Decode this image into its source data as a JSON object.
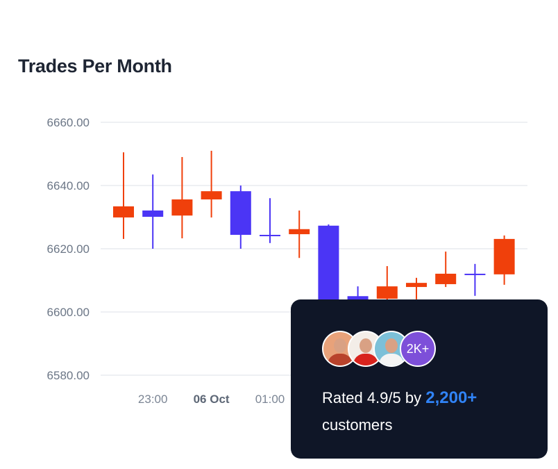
{
  "chart_data": {
    "type": "candlestick",
    "title": "Trades Per Month",
    "ylim": [
      6580,
      6660
    ],
    "yticks": [
      "6660.00",
      "6640.00",
      "6620.00",
      "6600.00",
      "6580.00"
    ],
    "grid": true,
    "xticks": [
      {
        "index": 1,
        "label": "23:00",
        "bold": false
      },
      {
        "index": 3,
        "label": "06 Oct",
        "bold": true
      },
      {
        "index": 5,
        "label": "01:00",
        "bold": false
      }
    ],
    "colors": {
      "up": "#f0400b",
      "down": "#4b35f5"
    },
    "candles": [
      {
        "open": 6629.9,
        "high": 6650.5,
        "low": 6623.1,
        "close": 6633.4
      },
      {
        "open": 6632.1,
        "high": 6643.5,
        "low": 6620.0,
        "close": 6630.1
      },
      {
        "open": 6630.5,
        "high": 6649.0,
        "low": 6623.3,
        "close": 6635.6
      },
      {
        "open": 6635.6,
        "high": 6651.0,
        "low": 6629.9,
        "close": 6638.2
      },
      {
        "open": 6638.2,
        "high": 6640.0,
        "low": 6620.0,
        "close": 6624.4
      },
      {
        "open": 6624.4,
        "high": 6636.0,
        "low": 6621.8,
        "close": 6624.1
      },
      {
        "open": 6624.6,
        "high": 6632.1,
        "low": 6617.1,
        "close": 6626.2
      },
      {
        "open": 6627.3,
        "high": 6627.7,
        "low": 6594.0,
        "close": 6596.0
      },
      {
        "open": 6605.0,
        "high": 6608.1,
        "low": 6600.0,
        "close": 6603.0
      },
      {
        "open": 6604.2,
        "high": 6614.5,
        "low": 6600.0,
        "close": 6608.1
      },
      {
        "open": 6607.9,
        "high": 6610.8,
        "low": 6604.0,
        "close": 6609.2
      },
      {
        "open": 6608.8,
        "high": 6619.1,
        "low": 6607.9,
        "close": 6612.1
      },
      {
        "open": 6612.1,
        "high": 6615.2,
        "low": 6605.1,
        "close": 6611.9
      },
      {
        "open": 6611.9,
        "high": 6624.2,
        "low": 6608.6,
        "close": 6623.1
      }
    ]
  },
  "card": {
    "avatars": [
      {
        "name": "customer-avatar-1",
        "bg": "#e8a27a",
        "shirt": "#b8432c"
      },
      {
        "name": "customer-avatar-2",
        "bg": "#f3ede8",
        "shirt": "#d8231d"
      },
      {
        "name": "customer-avatar-3",
        "bg": "#7cc0d8",
        "shirt": "#f4f4f4"
      }
    ],
    "more_label": "2K+",
    "rating_prefix": "Rated 4.9/5 by",
    "rating_count": "2,200+",
    "rating_suffix": "customers"
  }
}
